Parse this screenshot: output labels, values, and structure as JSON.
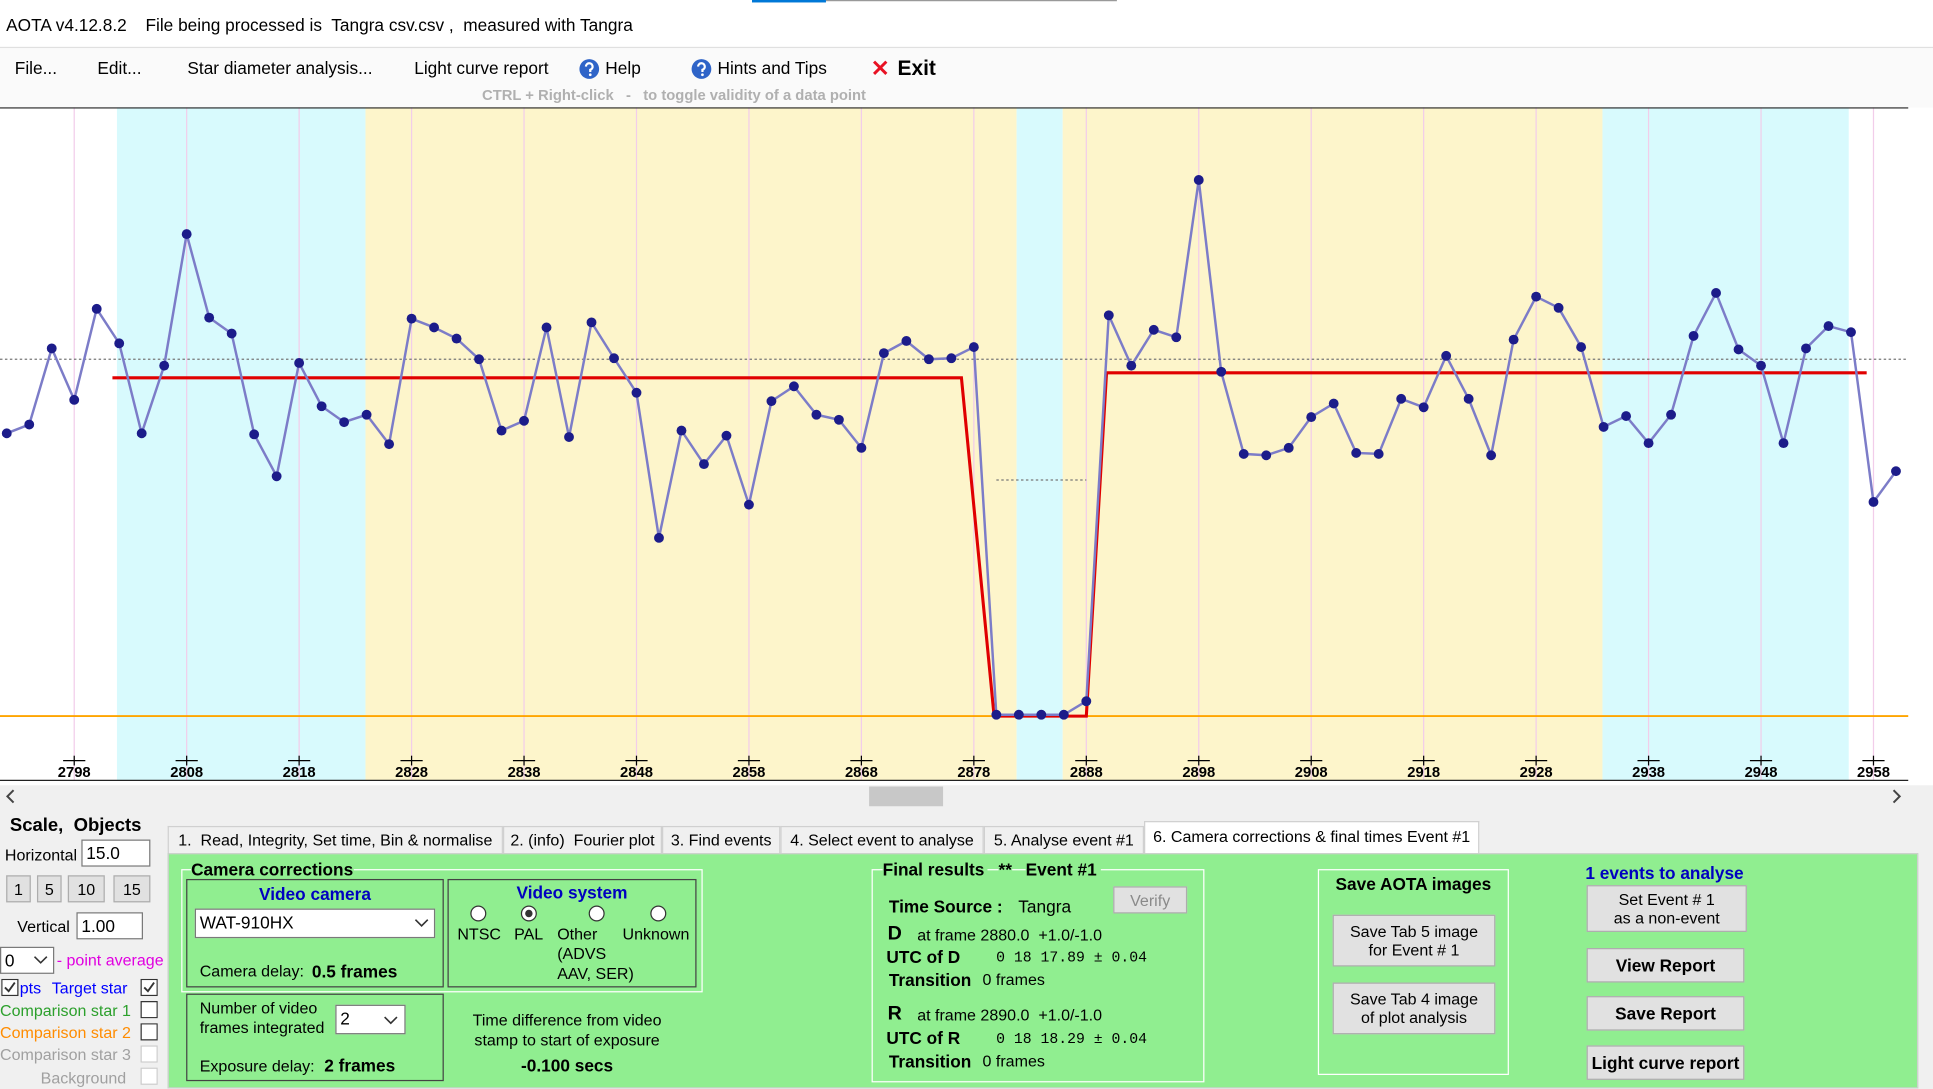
{
  "titlebar": {
    "app": "AOTA v4.12.8.2",
    "file": "File being processed is  Tangra csv.csv ,  measured with Tangra"
  },
  "menu": {
    "items": [
      "File...",
      "Edit...",
      "Star diameter analysis...",
      "Light curve report",
      "Help",
      "Hints and Tips",
      "Exit"
    ],
    "hint": "CTRL + Right-click   -   to toggle validity of a data point"
  },
  "chart_data": {
    "type": "line",
    "x": [
      2792,
      2794,
      2796,
      2798,
      2800,
      2802,
      2804,
      2806,
      2808,
      2810,
      2812,
      2814,
      2816,
      2818,
      2820,
      2822,
      2824,
      2826,
      2828,
      2830,
      2832,
      2834,
      2836,
      2838,
      2840,
      2842,
      2844,
      2846,
      2848,
      2850,
      2852,
      2854,
      2856,
      2858,
      2860,
      2862,
      2864,
      2866,
      2868,
      2870,
      2872,
      2874,
      2876,
      2878,
      2880,
      2882,
      2884,
      2886,
      2888,
      2890,
      2892,
      2894,
      2896,
      2898,
      2900,
      2902,
      2904,
      2906,
      2908,
      2910,
      2912,
      2914,
      2916,
      2918,
      2920,
      2922,
      2924,
      2926,
      2928,
      2930,
      2932,
      2934,
      2936,
      2938,
      2940,
      2942,
      2944,
      2946,
      2948,
      2950,
      2952,
      2954,
      2956,
      2958,
      2960
    ],
    "series": [
      {
        "color": "#1c1c8a",
        "line_color": "#7c7cc8",
        "values": [
          83.6,
          86.2,
          108.7,
          93.5,
          120.4,
          110.2,
          83.6,
          103.6,
          142.5,
          117.8,
          113.1,
          83.3,
          70.9,
          104.4,
          91.6,
          86.9,
          89.1,
          80.4,
          117.5,
          114.9,
          111.6,
          105.5,
          84.4,
          87.3,
          114.9,
          82.5,
          116.4,
          105.8,
          95.6,
          52.7,
          84.4,
          74.5,
          82.9,
          62.5,
          93.1,
          97.5,
          89.1,
          87.6,
          79.3,
          107.3,
          110.9,
          105.5,
          105.8,
          109.1,
          0.4,
          0.4,
          0.4,
          0.4,
          4.4,
          118.5,
          103.6,
          114.2,
          112,
          158.5,
          101.8,
          77.5,
          77.1,
          79.3,
          88.4,
          92.4,
          77.8,
          77.5,
          93.8,
          91.3,
          106.5,
          93.8,
          77.1,
          111.3,
          124,
          120.7,
          109.1,
          85.5,
          88.7,
          80.7,
          89.1,
          112.4,
          125.1,
          108.4,
          103.6,
          80.7,
          108.7,
          115.3,
          113.5,
          63.3,
          72.4
        ]
      }
    ],
    "model": {
      "color": "#e00000",
      "x": [
        2801.4,
        2876.9,
        2879.8,
        2888.0,
        2889.8,
        2957.4
      ],
      "values": [
        100,
        100,
        0,
        0,
        101.5,
        101.5
      ]
    },
    "bands": [
      {
        "from": 2801.8,
        "to": 2823.9,
        "color": "#d8fafd"
      },
      {
        "from": 2823.9,
        "to": 2881.8,
        "color": "#fdf5cb"
      },
      {
        "from": 2881.8,
        "to": 2885.9,
        "color": "#d8fafd"
      },
      {
        "from": 2885.9,
        "to": 2933.9,
        "color": "#fdf5cb"
      },
      {
        "from": 2933.9,
        "to": 2955.8,
        "color": "#d8fafd"
      }
    ],
    "baseline": {
      "value": 0,
      "color": "#ffa500"
    },
    "dotted_levels": [
      {
        "value": 105.5,
        "from": 2791.4,
        "to": 2961.1
      },
      {
        "value": 69.8,
        "from": 2880,
        "to": 2888
      }
    ],
    "xlim": [
      2791.4,
      2961.1
    ],
    "ylim": [
      -19,
      180
    ],
    "xticks": [
      2798,
      2808,
      2818,
      2828,
      2838,
      2848,
      2858,
      2868,
      2878,
      2888,
      2898,
      2908,
      2918,
      2928,
      2938,
      2948,
      2958
    ],
    "grid": true,
    "grid_color": "#f2cdea"
  },
  "scale_panel": {
    "title": "Scale,  Objects",
    "horizontal_label": "Horizontal",
    "horizontal": "15.0",
    "buttons": [
      1,
      5,
      10,
      15
    ],
    "vertical_label": "Vertical",
    "vertical": "1.00",
    "point_average": 0,
    "point_average_label": "- point average",
    "pts": "pts",
    "objects": [
      "Target star",
      "Comparison star 1",
      "Comparison star 2",
      "Comparison star 3",
      "Background"
    ]
  },
  "tabs": [
    "1.  Read, Integrity, Set time, Bin & normalise",
    "2. (info)  Fourier plot",
    "3. Find events",
    "4. Select event to analyse",
    "5. Analyse event #1",
    "6. Camera corrections & final times Event #1"
  ],
  "camera": {
    "title": "Camera corrections",
    "video_camera": "Video camera",
    "camera_model": "WAT-910HX",
    "camera_delay_label": "Camera delay:",
    "camera_delay": "0.5 frames",
    "video_system": "Video system",
    "systems": [
      "NTSC",
      "PAL",
      "Other",
      "Unknown"
    ],
    "other_detail": [
      "(ADVS",
      "AAV, SER)"
    ],
    "frames_label": [
      "Number of video",
      "frames integrated"
    ],
    "frames": 2,
    "exposure_delay_label": "Exposure delay:",
    "exposure_delay": "2 frames",
    "time_diff": [
      "Time difference from video",
      "stamp to start of exposure"
    ],
    "time_diff_value": "-0.100 secs"
  },
  "final": {
    "title": "Final results",
    "stars": "**",
    "event": "Event #1",
    "verify": "Verify",
    "time_source_label": "Time Source :",
    "time_source": "Tangra",
    "d": {
      "letter": "D",
      "frame": "at frame 2880.0  +1.0/-1.0",
      "utc_label": "UTC of D",
      "utc": "0 18 17.89 ± 0.04",
      "transition_label": "Transition",
      "transition": "0 frames"
    },
    "r": {
      "letter": "R",
      "frame": "at frame 2890.0  +1.0/-1.0",
      "utc_label": "UTC of R",
      "utc": "0 18 18.29 ± 0.04",
      "transition_label": "Transition",
      "transition": "0 frames"
    }
  },
  "save": {
    "title": "Save AOTA images",
    "tab5": [
      "Save Tab 5 image",
      "for Event # 1"
    ],
    "tab4": [
      "Save Tab 4 image",
      "of plot analysis"
    ]
  },
  "events": {
    "title": "1 events to analyse",
    "non_event": [
      "Set Event # 1",
      "as a non-event"
    ],
    "view": "View Report",
    "save": "Save Report",
    "light_curve": "Light curve report"
  }
}
